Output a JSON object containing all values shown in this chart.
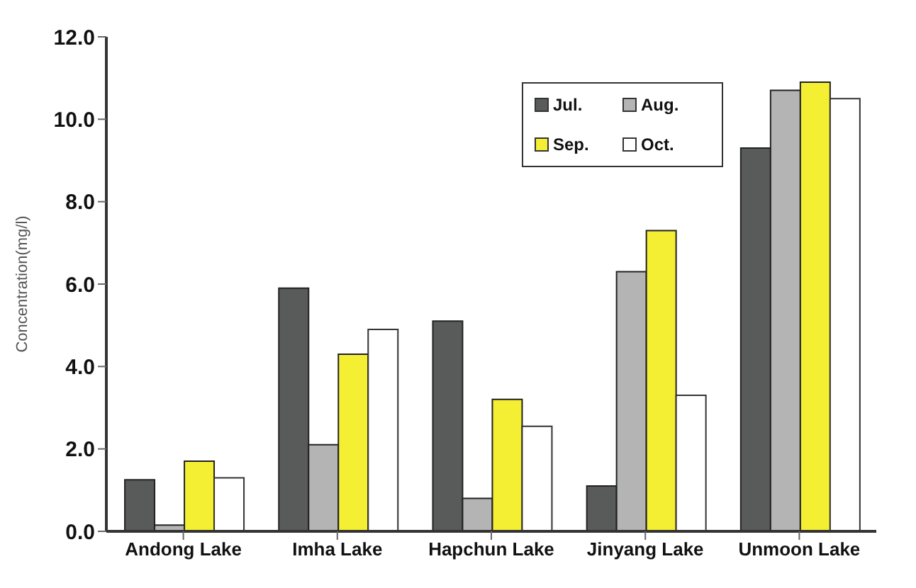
{
  "chart_data": {
    "type": "bar",
    "ylabel": "Concentration(mg/l)",
    "categories": [
      "Andong Lake",
      "Imha Lake",
      "Hapchun Lake",
      "Jinyang Lake",
      "Unmoon Lake"
    ],
    "series": [
      {
        "name": "Jul.",
        "color": "#585b5a",
        "values": [
          1.25,
          5.9,
          5.1,
          1.1,
          9.3
        ]
      },
      {
        "name": "Aug.",
        "color": "#b4b4b4",
        "values": [
          0.15,
          2.1,
          0.8,
          6.3,
          10.7
        ]
      },
      {
        "name": "Sep.",
        "color": "#f5ef33",
        "values": [
          1.7,
          4.3,
          3.2,
          7.3,
          10.9
        ]
      },
      {
        "name": "Oct.",
        "color": "#ffffff",
        "values": [
          1.3,
          4.9,
          2.55,
          3.3,
          10.5
        ]
      }
    ],
    "ylim": [
      0,
      12
    ],
    "yticks": [
      {
        "value": 0,
        "label": "0.0"
      },
      {
        "value": 2,
        "label": "2.0"
      },
      {
        "value": 4,
        "label": "4.0"
      },
      {
        "value": 6,
        "label": "6.0"
      },
      {
        "value": 8,
        "label": "8.0"
      },
      {
        "value": 10,
        "label": "10.0"
      },
      {
        "value": 12,
        "label": "12.0"
      }
    ],
    "grid": false,
    "legend": "top right"
  }
}
